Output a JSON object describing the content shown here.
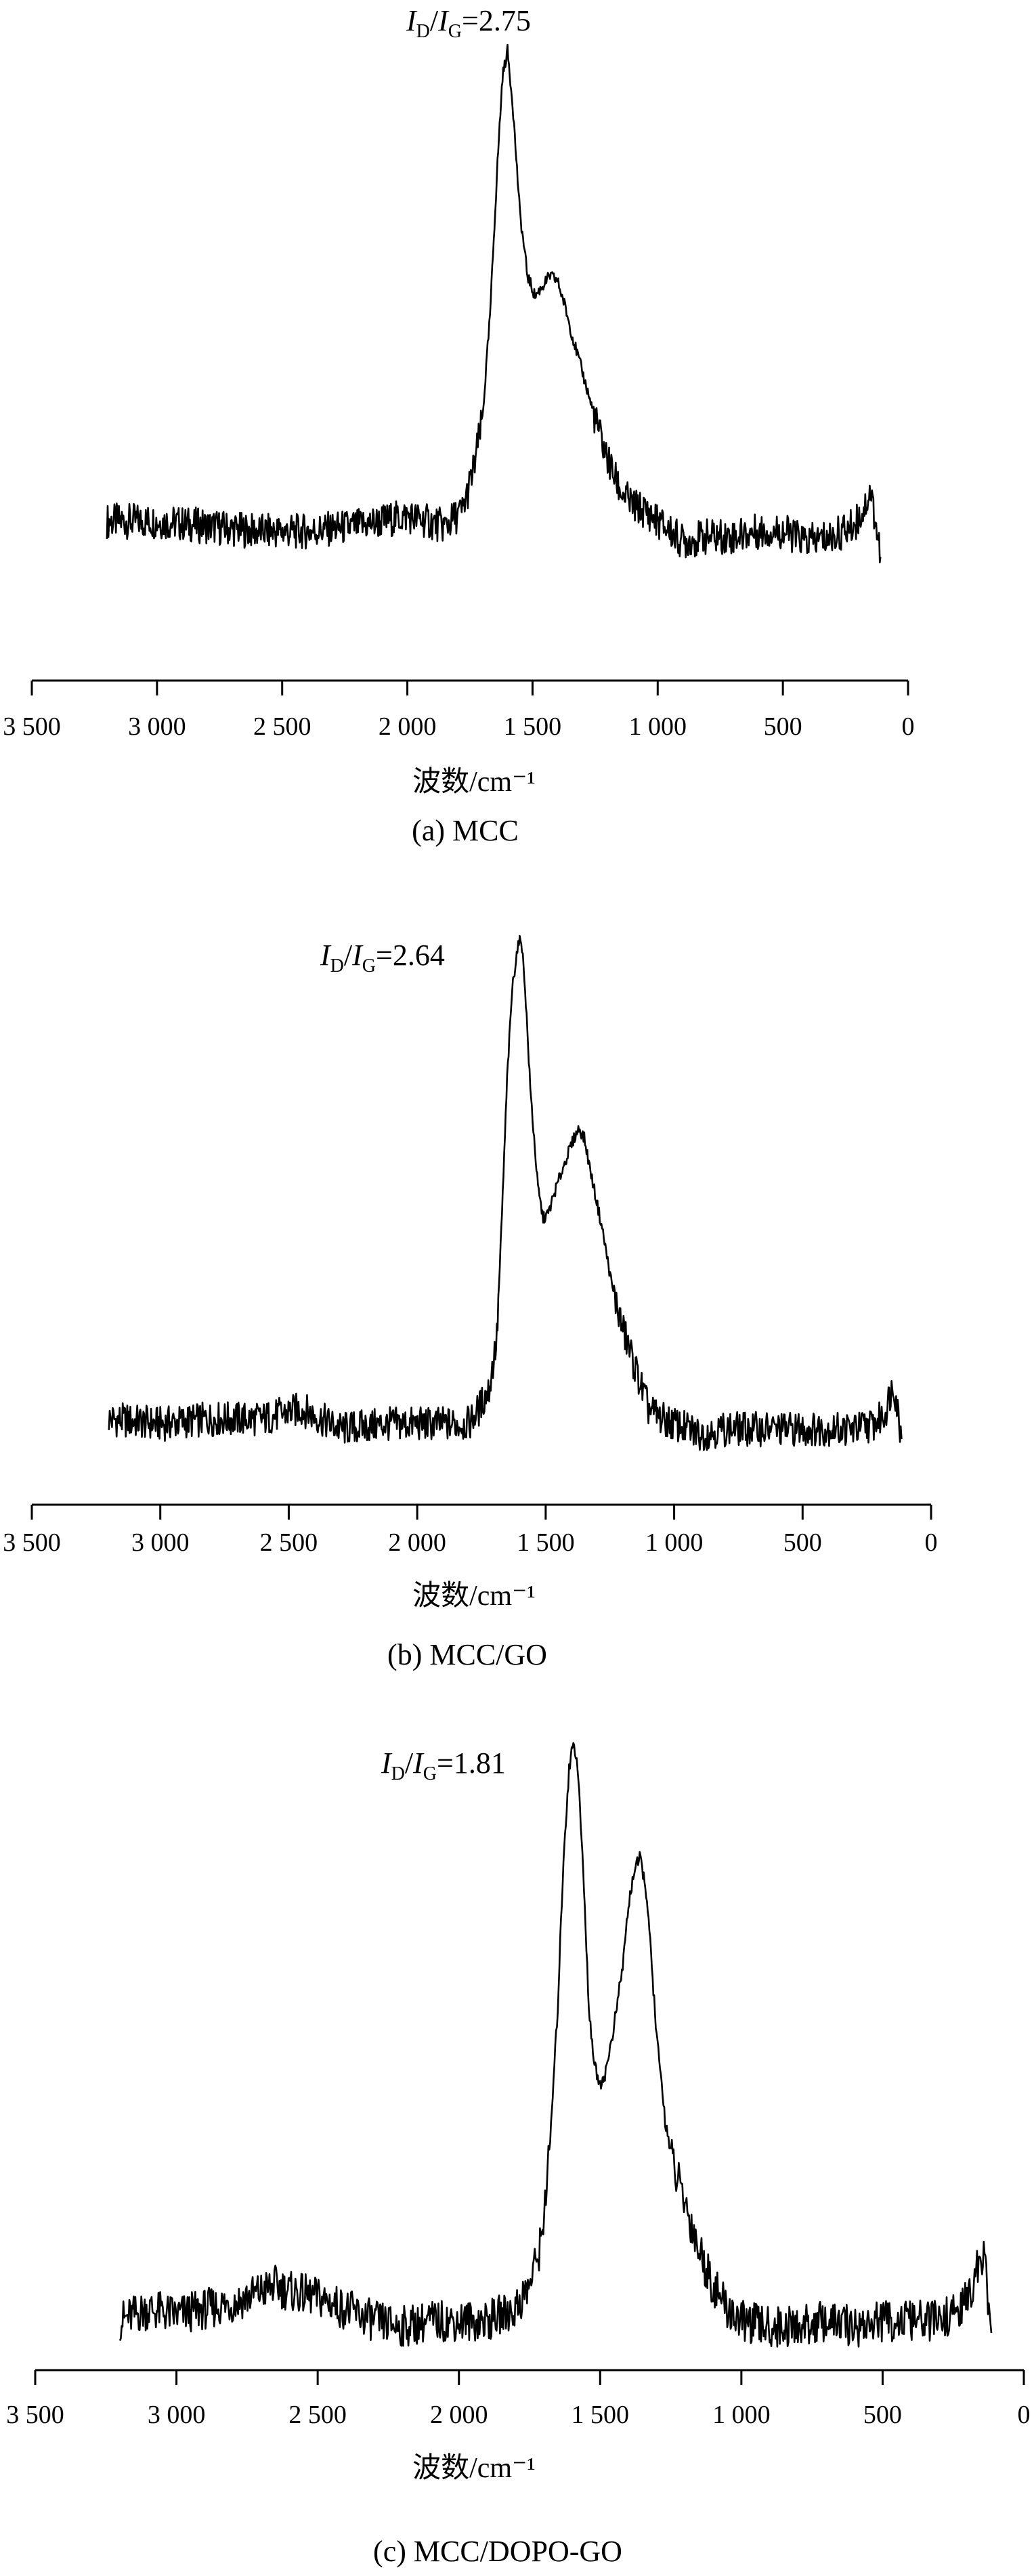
{
  "chart_data": [
    {
      "type": "line",
      "caption": "(a) MCC",
      "xlabel": "波数/cm⁻¹",
      "ylabel": "",
      "x_reversed": true,
      "xlim": [
        3500,
        0
      ],
      "xticks": [
        3500,
        3000,
        2500,
        2000,
        1500,
        1000,
        500,
        0
      ],
      "xtick_labels": [
        "3 500",
        "3 000",
        "2 500",
        "2 000",
        "1 500",
        "1 000",
        "500",
        "0"
      ],
      "annotation": {
        "i": "I",
        "d": "D",
        "slash": "/",
        "g": "G",
        "value": "=2.75"
      },
      "series": [
        {
          "points": [
            [
              3200,
              0.08
            ],
            [
              3000,
              0.08
            ],
            [
              2800,
              0.07
            ],
            [
              2600,
              0.06
            ],
            [
              2400,
              0.06
            ],
            [
              2200,
              0.07
            ],
            [
              2000,
              0.09
            ],
            [
              1850,
              0.07
            ],
            [
              1780,
              0.1
            ],
            [
              1740,
              0.17
            ],
            [
              1700,
              0.28
            ],
            [
              1670,
              0.48
            ],
            [
              1640,
              0.78
            ],
            [
              1620,
              0.95
            ],
            [
              1600,
              1.0
            ],
            [
              1580,
              0.9
            ],
            [
              1550,
              0.68
            ],
            [
              1520,
              0.56
            ],
            [
              1490,
              0.52
            ],
            [
              1460,
              0.54
            ],
            [
              1430,
              0.56
            ],
            [
              1400,
              0.55
            ],
            [
              1370,
              0.5
            ],
            [
              1340,
              0.44
            ],
            [
              1300,
              0.37
            ],
            [
              1250,
              0.28
            ],
            [
              1200,
              0.2
            ],
            [
              1150,
              0.14
            ],
            [
              1100,
              0.11
            ],
            [
              1050,
              0.1
            ],
            [
              1000,
              0.08
            ],
            [
              900,
              0.04
            ],
            [
              800,
              0.05
            ],
            [
              700,
              0.05
            ],
            [
              600,
              0.06
            ],
            [
              500,
              0.06
            ],
            [
              400,
              0.04
            ],
            [
              300,
              0.05
            ],
            [
              220,
              0.07
            ],
            [
              180,
              0.1
            ],
            [
              150,
              0.14
            ],
            [
              130,
              0.08
            ],
            [
              110,
              0.01
            ]
          ]
        }
      ]
    },
    {
      "type": "line",
      "caption": "(b) MCC/GO",
      "xlabel": "波数/cm⁻¹",
      "ylabel": "",
      "x_reversed": true,
      "xlim": [
        3500,
        0
      ],
      "xticks": [
        3500,
        3000,
        2500,
        2000,
        1500,
        1000,
        500,
        0
      ],
      "xtick_labels": [
        "3 500",
        "3 000",
        "2 500",
        "2 000",
        "1 500",
        "1 000",
        "500",
        "0"
      ],
      "annotation": {
        "i": "I",
        "d": "D",
        "slash": "/",
        "g": "G",
        "value": "=2.64"
      },
      "series": [
        {
          "points": [
            [
              3200,
              0.04
            ],
            [
              3000,
              0.03
            ],
            [
              2800,
              0.04
            ],
            [
              2600,
              0.04
            ],
            [
              2450,
              0.06
            ],
            [
              2300,
              0.02
            ],
            [
              2100,
              0.03
            ],
            [
              1900,
              0.03
            ],
            [
              1800,
              0.03
            ],
            [
              1760,
              0.06
            ],
            [
              1720,
              0.1
            ],
            [
              1690,
              0.2
            ],
            [
              1670,
              0.45
            ],
            [
              1650,
              0.72
            ],
            [
              1630,
              0.9
            ],
            [
              1610,
              0.98
            ],
            [
              1595,
              1.0
            ],
            [
              1580,
              0.9
            ],
            [
              1560,
              0.7
            ],
            [
              1530,
              0.5
            ],
            [
              1510,
              0.44
            ],
            [
              1490,
              0.45
            ],
            [
              1460,
              0.5
            ],
            [
              1420,
              0.56
            ],
            [
              1390,
              0.6
            ],
            [
              1370,
              0.62
            ],
            [
              1350,
              0.6
            ],
            [
              1320,
              0.52
            ],
            [
              1280,
              0.42
            ],
            [
              1240,
              0.3
            ],
            [
              1200,
              0.22
            ],
            [
              1150,
              0.14
            ],
            [
              1100,
              0.06
            ],
            [
              1050,
              0.04
            ],
            [
              1000,
              0.03
            ],
            [
              900,
              0.01
            ],
            [
              800,
              0.02
            ],
            [
              700,
              0.02
            ],
            [
              600,
              0.02
            ],
            [
              500,
              0.02
            ],
            [
              400,
              0.02
            ],
            [
              300,
              0.02
            ],
            [
              220,
              0.03
            ],
            [
              180,
              0.05
            ],
            [
              160,
              0.09
            ],
            [
              145,
              0.11
            ],
            [
              130,
              0.06
            ],
            [
              115,
              0.0
            ]
          ]
        }
      ]
    },
    {
      "type": "line",
      "caption": "(c) MCC/DOPO-GO",
      "xlabel": "波数/cm⁻¹",
      "ylabel": "",
      "x_reversed": true,
      "xlim": [
        3500,
        0
      ],
      "xticks": [
        3500,
        3000,
        2500,
        2000,
        1500,
        1000,
        500,
        0
      ],
      "xtick_labels": [
        "3 500",
        "3 000",
        "2 500",
        "2 000",
        "1 500",
        "1 000",
        "500",
        "0"
      ],
      "annotation": {
        "i": "I",
        "d": "D",
        "slash": "/",
        "g": "G",
        "value": "=1.81"
      },
      "series": [
        {
          "points": [
            [
              3200,
              0.02
            ],
            [
              3100,
              0.04
            ],
            [
              3000,
              0.03
            ],
            [
              2900,
              0.04
            ],
            [
              2800,
              0.05
            ],
            [
              2700,
              0.07
            ],
            [
              2650,
              0.08
            ],
            [
              2600,
              0.07
            ],
            [
              2500,
              0.06
            ],
            [
              2400,
              0.04
            ],
            [
              2300,
              0.02
            ],
            [
              2200,
              0.01
            ],
            [
              2100,
              0.02
            ],
            [
              2000,
              0.02
            ],
            [
              1900,
              0.02
            ],
            [
              1800,
              0.04
            ],
            [
              1750,
              0.08
            ],
            [
              1710,
              0.15
            ],
            [
              1680,
              0.3
            ],
            [
              1650,
              0.55
            ],
            [
              1630,
              0.8
            ],
            [
              1610,
              0.95
            ],
            [
              1595,
              1.0
            ],
            [
              1580,
              0.96
            ],
            [
              1560,
              0.78
            ],
            [
              1540,
              0.55
            ],
            [
              1520,
              0.45
            ],
            [
              1500,
              0.42
            ],
            [
              1480,
              0.44
            ],
            [
              1450,
              0.52
            ],
            [
              1420,
              0.62
            ],
            [
              1400,
              0.72
            ],
            [
              1380,
              0.78
            ],
            [
              1360,
              0.8
            ],
            [
              1340,
              0.76
            ],
            [
              1320,
              0.64
            ],
            [
              1300,
              0.5
            ],
            [
              1270,
              0.36
            ],
            [
              1240,
              0.28
            ],
            [
              1200,
              0.22
            ],
            [
              1150,
              0.14
            ],
            [
              1100,
              0.08
            ],
            [
              1050,
              0.04
            ],
            [
              1000,
              0.02
            ],
            [
              900,
              0.01
            ],
            [
              800,
              0.01
            ],
            [
              700,
              0.02
            ],
            [
              600,
              0.01
            ],
            [
              500,
              0.02
            ],
            [
              400,
              0.02
            ],
            [
              300,
              0.02
            ],
            [
              220,
              0.04
            ],
            [
              180,
              0.08
            ],
            [
              160,
              0.12
            ],
            [
              145,
              0.13
            ],
            [
              130,
              0.08
            ],
            [
              115,
              0.0
            ]
          ]
        }
      ]
    }
  ]
}
